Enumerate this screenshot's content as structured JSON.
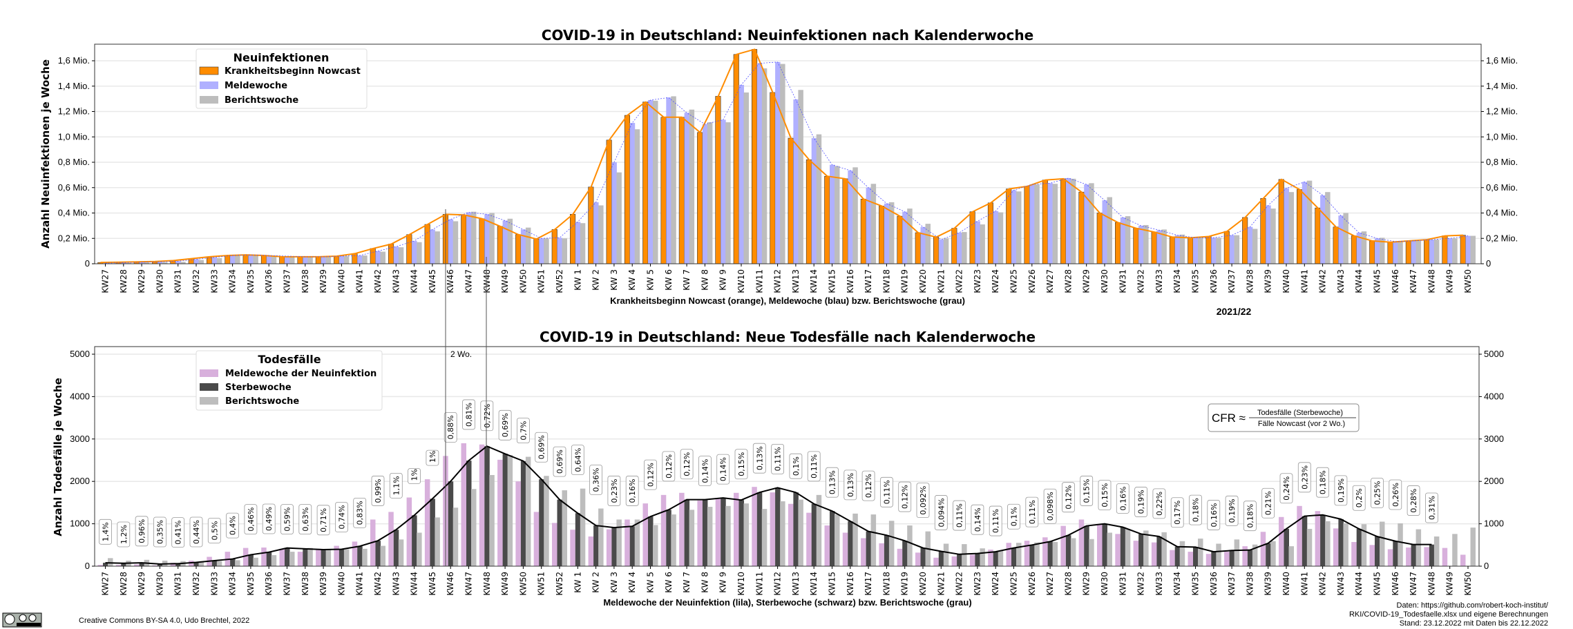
{
  "colors": {
    "orange": "#ff8c00",
    "blue": "#b0b0ff",
    "gray": "#bdbdbd",
    "lila": "#d8b0dc",
    "dark": "#4a4a4a",
    "line_blue": "#5050ff",
    "black": "#000000"
  },
  "year_label": "2021/22",
  "annotation_2wo": "2 Wo.",
  "cfr_formula": {
    "lhs": "CFR ≈",
    "numerator": "Todesfälle (Sterbewoche)",
    "denominator": "Fälle Nowcast (vor 2 Wo.)"
  },
  "footer": {
    "license": "Creative Commons BY-SA 4.0, Udo Brechtel, 2022",
    "cc_badge": "cc BY SA",
    "source_1": "Daten: https://github.com/robert-koch-institut/",
    "source_2": "RKI/COVID-19_Todesfaelle.xlsx und eigene Berechnungen",
    "source_3": "Stand: 23.12.2022 mit Daten bis 22.12.2022"
  },
  "chart_data": [
    {
      "type": "bar",
      "title": "COVID-19 in Deutschland: Neuinfektionen nach Kalenderwoche",
      "xlabel": "Krankheitsbeginn Nowcast (orange), Meldewoche (blau) bzw. Berichtswoche (grau)",
      "ylabel": "Anzahl Neuinfektionen je Woche",
      "unit": "Mio.",
      "ylim": [
        0,
        1.73
      ],
      "yticks": [
        "0",
        "0,2 Mio.",
        "0,4 Mio.",
        "0,6 Mio.",
        "0,8 Mio.",
        "1,0 Mio.",
        "1,2 Mio.",
        "1,4 Mio.",
        "1,6 Mio."
      ],
      "grid": true,
      "legend": {
        "title": "Neuinfektionen",
        "placement": "top-left"
      },
      "categories": [
        "KW27",
        "KW28",
        "KW29",
        "KW30",
        "KW31",
        "KW32",
        "KW33",
        "KW34",
        "KW35",
        "KW36",
        "KW37",
        "KW38",
        "KW39",
        "KW40",
        "KW41",
        "KW42",
        "KW43",
        "KW44",
        "KW45",
        "KW46",
        "KW47",
        "KW48",
        "KW49",
        "KW50",
        "KW51",
        "KW52",
        "KW 1",
        "KW 2",
        "KW 3",
        "KW 4",
        "KW 5",
        "KW 6",
        "KW 7",
        "KW 8",
        "KW 9",
        "KW10",
        "KW11",
        "KW12",
        "KW13",
        "KW14",
        "KW15",
        "KW16",
        "KW17",
        "KW18",
        "KW19",
        "KW20",
        "KW21",
        "KW22",
        "KW23",
        "KW24",
        "KW25",
        "KW26",
        "KW27",
        "KW28",
        "KW29",
        "KW30",
        "KW31",
        "KW32",
        "KW33",
        "KW34",
        "KW35",
        "KW36",
        "KW37",
        "KW38",
        "KW39",
        "KW40",
        "KW41",
        "KW42",
        "KW43",
        "KW44",
        "KW45",
        "KW46",
        "KW47",
        "KW48",
        "KW49",
        "KW50"
      ],
      "series": [
        {
          "name": "Krankheitsbeginn Nowcast",
          "color": "#ff8c00",
          "values": [
            0.01,
            0.012,
            0.015,
            0.018,
            0.025,
            0.04,
            0.055,
            0.065,
            0.07,
            0.065,
            0.055,
            0.055,
            0.055,
            0.06,
            0.08,
            0.12,
            0.155,
            0.23,
            0.31,
            0.39,
            0.385,
            0.355,
            0.295,
            0.23,
            0.195,
            0.27,
            0.39,
            0.605,
            0.975,
            1.17,
            1.275,
            1.155,
            1.155,
            1.035,
            1.32,
            1.65,
            1.69,
            1.35,
            0.99,
            0.82,
            0.69,
            0.67,
            0.51,
            0.455,
            0.375,
            0.245,
            0.21,
            0.28,
            0.41,
            0.48,
            0.59,
            0.61,
            0.66,
            0.67,
            0.565,
            0.4,
            0.325,
            0.28,
            0.25,
            0.21,
            0.205,
            0.215,
            0.255,
            0.365,
            0.515,
            0.665,
            0.585,
            0.44,
            0.29,
            0.22,
            0.18,
            0.17,
            0.18,
            0.19,
            0.22,
            0.225
          ]
        },
        {
          "name": "Meldewoche",
          "color": "#b0b0ff",
          "values": [
            0.005,
            0.008,
            0.012,
            0.015,
            0.02,
            0.035,
            0.05,
            0.065,
            0.07,
            0.065,
            0.06,
            0.055,
            0.055,
            0.06,
            0.065,
            0.1,
            0.135,
            0.18,
            0.27,
            0.35,
            0.405,
            0.39,
            0.34,
            0.27,
            0.2,
            0.205,
            0.33,
            0.485,
            0.8,
            1.11,
            1.29,
            1.31,
            1.19,
            1.1,
            1.135,
            1.41,
            1.58,
            1.59,
            1.295,
            0.99,
            0.78,
            0.735,
            0.6,
            0.475,
            0.41,
            0.29,
            0.19,
            0.245,
            0.335,
            0.415,
            0.58,
            0.625,
            0.635,
            0.675,
            0.625,
            0.5,
            0.365,
            0.3,
            0.265,
            0.225,
            0.205,
            0.205,
            0.225,
            0.29,
            0.46,
            0.595,
            0.645,
            0.54,
            0.38,
            0.245,
            0.2,
            0.175,
            0.18,
            0.19,
            0.2,
            0.22
          ]
        },
        {
          "name": "Berichtswoche",
          "color": "#bdbdbd",
          "values": [
            0.004,
            0.006,
            0.01,
            0.012,
            0.015,
            0.03,
            0.045,
            0.065,
            0.065,
            0.065,
            0.06,
            0.055,
            0.055,
            0.06,
            0.065,
            0.095,
            0.13,
            0.17,
            0.255,
            0.335,
            0.41,
            0.4,
            0.355,
            0.285,
            0.2,
            0.2,
            0.32,
            0.46,
            0.72,
            1.06,
            1.285,
            1.32,
            1.215,
            1.115,
            1.115,
            1.35,
            1.54,
            1.575,
            1.37,
            1.02,
            0.77,
            0.76,
            0.63,
            0.485,
            0.435,
            0.315,
            0.2,
            0.25,
            0.31,
            0.405,
            0.57,
            0.625,
            0.63,
            0.67,
            0.635,
            0.525,
            0.375,
            0.305,
            0.27,
            0.23,
            0.205,
            0.205,
            0.225,
            0.275,
            0.435,
            0.565,
            0.655,
            0.565,
            0.4,
            0.255,
            0.205,
            0.175,
            0.18,
            0.19,
            0.2,
            0.22
          ]
        }
      ]
    },
    {
      "type": "bar",
      "title": "COVID-19 in Deutschland: Neue Todesfälle nach Kalenderwoche",
      "xlabel": "Meldewoche der Neuinfektion (lila), Sterbewoche (schwarz) bzw. Berichtswoche (grau)",
      "ylabel": "Anzahl Todesfälle je Woche",
      "ylim": [
        0,
        5170
      ],
      "yticks": [
        "0",
        "1000",
        "2000",
        "3000",
        "4000",
        "5000"
      ],
      "grid": true,
      "legend": {
        "title": "Todesfälle",
        "placement": "top-left"
      },
      "categories": [
        "KW27",
        "KW28",
        "KW29",
        "KW30",
        "KW31",
        "KW32",
        "KW33",
        "KW34",
        "KW35",
        "KW36",
        "KW37",
        "KW38",
        "KW39",
        "KW40",
        "KW41",
        "KW42",
        "KW43",
        "KW44",
        "KW45",
        "KW46",
        "KW47",
        "KW48",
        "KW49",
        "KW50",
        "KW51",
        "KW52",
        "KW 1",
        "KW 2",
        "KW 3",
        "KW 4",
        "KW 5",
        "KW 6",
        "KW 7",
        "KW 8",
        "KW 9",
        "KW10",
        "KW11",
        "KW12",
        "KW13",
        "KW14",
        "KW15",
        "KW16",
        "KW17",
        "KW18",
        "KW19",
        "KW20",
        "KW21",
        "KW22",
        "KW23",
        "KW24",
        "KW25",
        "KW26",
        "KW27",
        "KW28",
        "KW29",
        "KW30",
        "KW31",
        "KW32",
        "KW33",
        "KW34",
        "KW35",
        "KW36",
        "KW37",
        "KW38",
        "KW39",
        "KW40",
        "KW41",
        "KW42",
        "KW43",
        "KW44",
        "KW45",
        "KW46",
        "KW47",
        "KW48",
        "KW49",
        "KW50"
      ],
      "series": [
        {
          "name": "Meldewoche der Neuinfektion",
          "color": "#d8b0dc",
          "values": [
            30,
            30,
            40,
            20,
            80,
            130,
            220,
            340,
            430,
            440,
            410,
            340,
            410,
            480,
            580,
            1100,
            1280,
            1620,
            2050,
            2600,
            2900,
            2870,
            2510,
            2000,
            1280,
            1020,
            860,
            700,
            870,
            1100,
            1480,
            1680,
            1730,
            1550,
            1610,
            1730,
            1870,
            1740,
            1470,
            1260,
            960,
            790,
            660,
            540,
            410,
            320,
            200,
            230,
            270,
            390,
            550,
            600,
            680,
            950,
            1100,
            990,
            760,
            600,
            560,
            380,
            340,
            290,
            340,
            470,
            810,
            1160,
            1420,
            1300,
            890,
            570,
            500,
            400,
            440,
            450,
            430,
            270
          ]
        },
        {
          "name": "Sterbewoche",
          "color": "#4a4a4a",
          "values": [
            80,
            70,
            80,
            50,
            60,
            90,
            130,
            170,
            270,
            330,
            430,
            410,
            390,
            400,
            470,
            600,
            860,
            1200,
            1590,
            2000,
            2490,
            2830,
            2650,
            2480,
            2050,
            1570,
            1250,
            960,
            910,
            940,
            1170,
            1330,
            1570,
            1570,
            1610,
            1560,
            1740,
            1850,
            1740,
            1470,
            1300,
            1060,
            820,
            730,
            600,
            430,
            350,
            280,
            300,
            340,
            430,
            500,
            580,
            730,
            950,
            1000,
            920,
            760,
            700,
            460,
            450,
            340,
            370,
            380,
            540,
            880,
            1180,
            1210,
            1110,
            880,
            700,
            590,
            510,
            510,
            null,
            null
          ]
        },
        {
          "name": "Berichtswoche",
          "color": "#bdbdbd",
          "values": [
            190,
            130,
            150,
            130,
            120,
            90,
            120,
            140,
            200,
            260,
            340,
            430,
            390,
            400,
            410,
            480,
            630,
            790,
            1150,
            1380,
            1820,
            2150,
            2620,
            2580,
            2130,
            1790,
            1830,
            1360,
            1100,
            1100,
            970,
            1220,
            1330,
            1400,
            1420,
            1480,
            1350,
            1530,
            1570,
            1680,
            1220,
            1240,
            1220,
            1070,
            960,
            820,
            530,
            520,
            420,
            360,
            550,
            560,
            570,
            660,
            640,
            790,
            880,
            840,
            800,
            590,
            650,
            530,
            630,
            510,
            590,
            470,
            880,
            1060,
            1010,
            990,
            1050,
            1010,
            870,
            700,
            760,
            910
          ]
        }
      ],
      "cfr_labels": [
        "1,4%",
        "1,2%",
        "0,96%",
        "0,35%",
        "0,41%",
        "0,44%",
        "0,5%",
        "0,4%",
        "0,46%",
        "0,49%",
        "0,59%",
        "0,63%",
        "0,71%",
        "0,74%",
        "0,83%",
        "0,99%",
        "1,1%",
        "1%",
        "1%",
        "0,88%",
        "0,81%",
        "0,72%",
        "0,69%",
        "0,7%",
        "0,69%",
        "0,69%",
        "0,64%",
        "0,36%",
        "0,23%",
        "0,16%",
        "0,12%",
        "0,12%",
        "0,12%",
        "0,14%",
        "0,14%",
        "0,15%",
        "0,13%",
        "0,11%",
        "0,1%",
        "0,11%",
        "0,13%",
        "0,13%",
        "0,12%",
        "0,11%",
        "0,12%",
        "0,092%",
        "0,094%",
        "0,11%",
        "0,14%",
        "0,11%",
        "0,1%",
        "0,11%",
        "0,098%",
        "0,12%",
        "0,15%",
        "0,15%",
        "0,16%",
        "0,19%",
        "0,22%",
        "0,17%",
        "0,18%",
        "0,16%",
        "0,19%",
        "0,18%",
        "0,21%",
        "0,24%",
        "0,23%",
        "0,18%",
        "0,19%",
        "0,2%",
        "0,25%",
        "0,26%",
        "0,28%",
        "0,31%"
      ]
    }
  ]
}
